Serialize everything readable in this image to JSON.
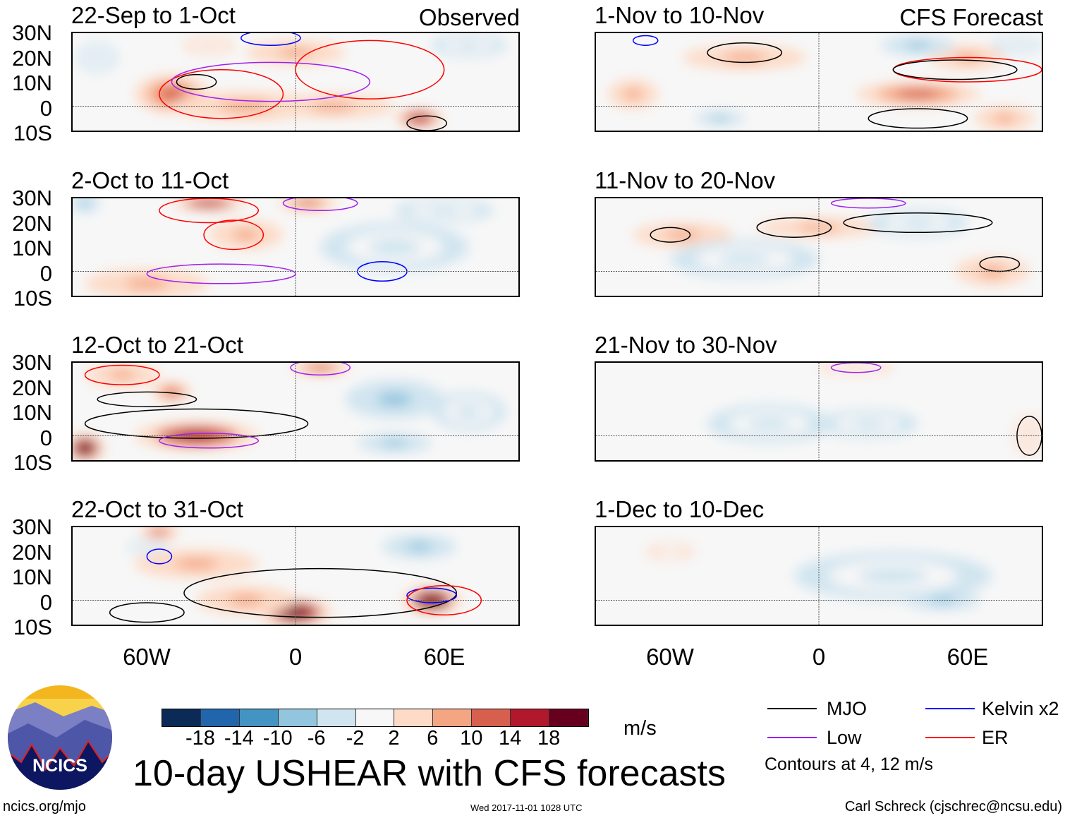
{
  "headers": {
    "observed": "Observed",
    "forecast": "CFS Forecast"
  },
  "lat_labels": [
    "30N",
    "20N",
    "10N",
    "0",
    "10S"
  ],
  "lon_labels": [
    "60W",
    "0",
    "60E"
  ],
  "colorbar": {
    "colors": [
      "#0b2a55",
      "#2166ac",
      "#4393c3",
      "#92c5de",
      "#d1e5f0",
      "#f7f7f7",
      "#fddbc7",
      "#f4a582",
      "#d6604d",
      "#b2182b",
      "#67001f"
    ],
    "labels": [
      "-18",
      "-14",
      "-10",
      "-6",
      "-2",
      "2",
      "6",
      "10",
      "14",
      "18"
    ],
    "units": "m/s"
  },
  "title": "10-day USHEAR with CFS forecasts",
  "legend": {
    "items": [
      {
        "label": "MJO",
        "color": "#000000"
      },
      {
        "label": "Kelvin x2",
        "color": "#0000ff"
      },
      {
        "label": "Low",
        "color": "#a020f0"
      },
      {
        "label": "ER",
        "color": "#ff0000"
      }
    ],
    "note": "Contours at 4, 12 m/s"
  },
  "logo_text": "NCICS",
  "footer": {
    "url": "ncics.org/mjo",
    "timestamp": "Wed 2017-11-01 1028 UTC",
    "author": "Carl Schreck (cjschrec@ncsu.edu)"
  },
  "chart_data": {
    "type": "heatmap",
    "lon_range": [
      -90,
      90
    ],
    "lat_range": [
      -10,
      30
    ],
    "panels": [
      {
        "title": "22-Sep to 1-Oct",
        "blobs": [
          [
            -50,
            5,
            10,
            15,
            8
          ],
          [
            -20,
            0,
            8,
            30,
            6
          ],
          [
            15,
            0,
            8,
            25,
            5
          ],
          [
            50,
            -5,
            16,
            10,
            4
          ],
          [
            0,
            22,
            8,
            20,
            5
          ],
          [
            70,
            25,
            -6,
            15,
            5
          ],
          [
            -80,
            20,
            -4,
            8,
            6
          ],
          [
            -35,
            25,
            5,
            10,
            4
          ]
        ],
        "contours": [
          [
            "MJO",
            -40,
            10,
            8,
            3
          ],
          [
            "ER",
            -30,
            5,
            25,
            10
          ],
          [
            "Low",
            -10,
            10,
            40,
            8
          ],
          [
            "Kelvin",
            -10,
            28,
            12,
            3
          ],
          [
            "ER",
            30,
            15,
            30,
            12
          ],
          [
            "MJO",
            53,
            -7,
            8,
            3
          ]
        ]
      },
      {
        "title": "2-Oct to 11-Oct",
        "blobs": [
          [
            -35,
            28,
            14,
            15,
            3
          ],
          [
            5,
            28,
            12,
            12,
            3
          ],
          [
            -20,
            15,
            8,
            15,
            6
          ],
          [
            40,
            10,
            -6,
            30,
            10
          ],
          [
            -60,
            -5,
            6,
            25,
            6
          ],
          [
            -85,
            28,
            -10,
            6,
            4
          ],
          [
            60,
            25,
            -4,
            20,
            5
          ]
        ],
        "contours": [
          [
            "ER",
            -35,
            25,
            20,
            5
          ],
          [
            "Low",
            10,
            28,
            15,
            3
          ],
          [
            "Kelvin",
            35,
            0,
            10,
            4
          ],
          [
            "ER",
            -25,
            15,
            12,
            6
          ],
          [
            "Low",
            -30,
            -1,
            30,
            4
          ]
        ]
      },
      {
        "title": "12-Oct to 21-Oct",
        "blobs": [
          [
            -85,
            -5,
            20,
            8,
            6
          ],
          [
            -50,
            18,
            12,
            8,
            4
          ],
          [
            -40,
            0,
            14,
            25,
            6
          ],
          [
            10,
            28,
            12,
            12,
            3
          ],
          [
            40,
            15,
            -8,
            20,
            8
          ],
          [
            40,
            -3,
            -10,
            15,
            4
          ],
          [
            70,
            10,
            -6,
            15,
            8
          ],
          [
            -70,
            25,
            6,
            15,
            5
          ]
        ],
        "contours": [
          [
            "MJO",
            -60,
            15,
            20,
            3
          ],
          [
            "MJO",
            -40,
            5,
            45,
            6
          ],
          [
            "Low",
            -35,
            -2,
            20,
            3
          ],
          [
            "ER",
            -70,
            25,
            15,
            4
          ],
          [
            "Low",
            10,
            28,
            12,
            3
          ]
        ]
      },
      {
        "title": "22-Oct to 31-Oct",
        "blobs": [
          [
            0,
            -5,
            20,
            15,
            6
          ],
          [
            55,
            0,
            18,
            12,
            6
          ],
          [
            50,
            22,
            -10,
            15,
            5
          ],
          [
            -40,
            15,
            6,
            25,
            6
          ],
          [
            -55,
            28,
            10,
            8,
            3
          ],
          [
            -20,
            0,
            6,
            20,
            6
          ],
          [
            -60,
            22,
            -6,
            8,
            3
          ]
        ],
        "contours": [
          [
            "MJO",
            10,
            3,
            55,
            10
          ],
          [
            "Kelvin",
            55,
            2,
            10,
            3
          ],
          [
            "ER",
            60,
            0,
            15,
            6
          ],
          [
            "Kelvin",
            -55,
            18,
            5,
            3
          ],
          [
            "MJO",
            -60,
            -5,
            15,
            4
          ]
        ]
      }
    ],
    "forecast_panels": [
      {
        "title": "1-Nov to 10-Nov",
        "blobs": [
          [
            -30,
            20,
            8,
            25,
            5
          ],
          [
            40,
            5,
            10,
            25,
            5
          ],
          [
            60,
            20,
            8,
            15,
            5
          ],
          [
            40,
            25,
            -10,
            15,
            4
          ],
          [
            -40,
            -5,
            -10,
            10,
            3
          ],
          [
            75,
            -5,
            8,
            12,
            5
          ],
          [
            -75,
            5,
            6,
            10,
            6
          ],
          [
            80,
            25,
            -6,
            10,
            4
          ]
        ],
        "contours": [
          [
            "MJO",
            -30,
            22,
            15,
            4
          ],
          [
            "ER",
            60,
            15,
            30,
            5
          ],
          [
            "MJO",
            55,
            15,
            25,
            4
          ],
          [
            "MJO",
            40,
            -5,
            20,
            4
          ],
          [
            "Kelvin",
            -70,
            27,
            5,
            2
          ]
        ]
      },
      {
        "title": "11-Nov to 20-Nov",
        "blobs": [
          [
            -55,
            15,
            8,
            20,
            5
          ],
          [
            0,
            18,
            6,
            25,
            4
          ],
          [
            70,
            0,
            8,
            15,
            6
          ],
          [
            -30,
            5,
            -4,
            30,
            8
          ],
          [
            40,
            20,
            -4,
            20,
            6
          ]
        ],
        "contours": [
          [
            "MJO",
            -60,
            15,
            8,
            3
          ],
          [
            "MJO",
            -10,
            18,
            15,
            4
          ],
          [
            "MJO",
            40,
            20,
            30,
            4
          ],
          [
            "MJO",
            73,
            3,
            8,
            3
          ],
          [
            "Low",
            20,
            28,
            15,
            2
          ]
        ]
      },
      {
        "title": "21-Nov to 30-Nov",
        "blobs": [
          [
            -20,
            5,
            -4,
            25,
            8
          ],
          [
            20,
            5,
            -4,
            20,
            6
          ],
          [
            15,
            28,
            4,
            15,
            3
          ],
          [
            85,
            0,
            4,
            6,
            8
          ]
        ],
        "contours": [
          [
            "Low",
            15,
            28,
            10,
            2
          ],
          [
            "MJO",
            85,
            0,
            5,
            8
          ]
        ]
      },
      {
        "title": "1-Dec to 10-Dec",
        "blobs": [
          [
            50,
            0,
            -8,
            15,
            4
          ],
          [
            30,
            10,
            -4,
            40,
            10
          ],
          [
            -60,
            20,
            -2,
            15,
            5
          ]
        ],
        "contours": []
      }
    ]
  }
}
